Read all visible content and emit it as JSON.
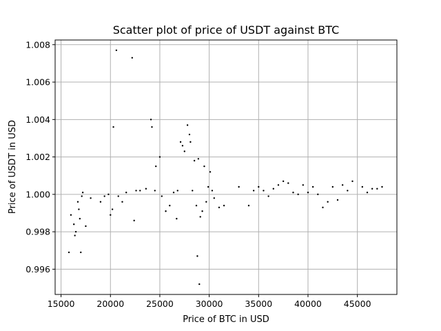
{
  "chart_data": {
    "type": "scatter",
    "title": "Scatter plot of price of USDT against BTC",
    "xlabel": "Price of BTC in USD",
    "ylabel": "Price of USDT in USD",
    "xlim": [
      14400,
      49000
    ],
    "ylim": [
      0.99465,
      1.00825
    ],
    "grid": true,
    "marker_color": "#000000",
    "grid_color": "#b0b0b0",
    "x_ticks": [
      15000,
      20000,
      25000,
      30000,
      35000,
      40000,
      45000
    ],
    "x_tick_labels": [
      "15000",
      "20000",
      "25000",
      "30000",
      "35000",
      "40000",
      "45000"
    ],
    "y_ticks": [
      0.996,
      0.998,
      1.0,
      1.002,
      1.004,
      1.006,
      1.008
    ],
    "y_tick_labels": [
      "0.996",
      "0.998",
      "1.000",
      "1.002",
      "1.004",
      "1.006",
      "1.008"
    ],
    "points": [
      [
        15800,
        0.9969
      ],
      [
        16000,
        0.9989
      ],
      [
        16300,
        0.9984
      ],
      [
        16400,
        0.9978
      ],
      [
        16500,
        0.998
      ],
      [
        16700,
        0.9996
      ],
      [
        16800,
        0.9992
      ],
      [
        16900,
        0.9987
      ],
      [
        17000,
        0.9969
      ],
      [
        17100,
        0.9999
      ],
      [
        17200,
        1.0001
      ],
      [
        17500,
        0.9983
      ],
      [
        18000,
        0.9998
      ],
      [
        19000,
        0.9996
      ],
      [
        19400,
        0.9999
      ],
      [
        19800,
        1.0
      ],
      [
        20000,
        0.9989
      ],
      [
        20200,
        0.9992
      ],
      [
        20300,
        1.0036
      ],
      [
        20600,
        1.0077
      ],
      [
        20800,
        0.9999
      ],
      [
        21200,
        0.9996
      ],
      [
        21600,
        1.0001
      ],
      [
        22200,
        1.0073
      ],
      [
        22400,
        0.9986
      ],
      [
        22600,
        1.0002
      ],
      [
        23000,
        1.0002
      ],
      [
        23600,
        1.0003
      ],
      [
        24100,
        1.004
      ],
      [
        24200,
        1.0036
      ],
      [
        24500,
        1.0002
      ],
      [
        24600,
        1.0015
      ],
      [
        25000,
        1.002
      ],
      [
        25200,
        0.9999
      ],
      [
        25600,
        0.9991
      ],
      [
        26000,
        0.9994
      ],
      [
        26400,
        1.0001
      ],
      [
        26700,
        0.9987
      ],
      [
        26800,
        1.0002
      ],
      [
        27100,
        1.0028
      ],
      [
        27300,
        1.0026
      ],
      [
        27500,
        1.0023
      ],
      [
        27800,
        1.0037
      ],
      [
        28000,
        1.0032
      ],
      [
        28100,
        1.0028
      ],
      [
        28300,
        1.0002
      ],
      [
        28500,
        1.0018
      ],
      [
        28700,
        0.9994
      ],
      [
        28800,
        0.9967
      ],
      [
        28900,
        1.0019
      ],
      [
        29000,
        0.9952
      ],
      [
        29100,
        0.9988
      ],
      [
        29300,
        0.9991
      ],
      [
        29500,
        1.0015
      ],
      [
        29700,
        0.9996
      ],
      [
        29900,
        1.0004
      ],
      [
        30100,
        1.0012
      ],
      [
        30300,
        1.0002
      ],
      [
        30500,
        0.9998
      ],
      [
        31000,
        0.9993
      ],
      [
        31500,
        0.9994
      ],
      [
        33000,
        1.0004
      ],
      [
        34000,
        0.9994
      ],
      [
        34500,
        1.0002
      ],
      [
        35000,
        1.0004
      ],
      [
        35500,
        1.0002
      ],
      [
        36000,
        0.9999
      ],
      [
        36500,
        1.0003
      ],
      [
        37000,
        1.0005
      ],
      [
        37500,
        1.0007
      ],
      [
        38000,
        1.0006
      ],
      [
        38500,
        1.0001
      ],
      [
        39000,
        1.0
      ],
      [
        39500,
        1.0005
      ],
      [
        40000,
        1.0001
      ],
      [
        40500,
        1.0004
      ],
      [
        41000,
        1.0
      ],
      [
        41500,
        0.9993
      ],
      [
        42000,
        0.9996
      ],
      [
        42500,
        1.0004
      ],
      [
        43000,
        0.9997
      ],
      [
        43500,
        1.0005
      ],
      [
        44000,
        1.0002
      ],
      [
        44500,
        1.0007
      ],
      [
        45500,
        1.0004
      ],
      [
        46000,
        1.0001
      ],
      [
        46500,
        1.0003
      ],
      [
        47000,
        1.0003
      ],
      [
        47500,
        1.0004
      ]
    ]
  }
}
